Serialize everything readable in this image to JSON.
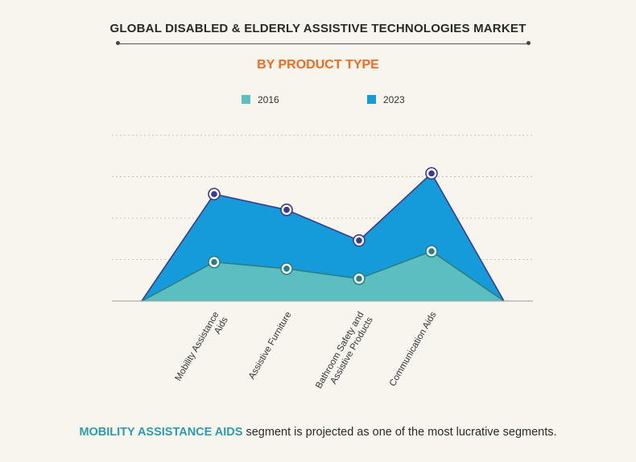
{
  "title": "GLOBAL DISABLED & ELDERLY ASSISTIVE TECHNOLOGIES MARKET",
  "subtitle": "BY PRODUCT TYPE",
  "colors": {
    "s2016": "#5bbfc1",
    "s2023": "#169bda",
    "title": "#2a2a2a",
    "subtitle": "#ef6b1f",
    "highlight": "#2b9cad"
  },
  "chart_data": {
    "type": "area",
    "categories": [
      "Mobility Assistance Aids",
      "Assistive Furniture",
      "Bathroom Safety and Assistive Products",
      "Communication Aids"
    ],
    "series": [
      {
        "name": "2016",
        "values": [
          47,
          39,
          27,
          60
        ]
      },
      {
        "name": "2023",
        "values": [
          129,
          110,
          73,
          154
        ]
      }
    ],
    "ylim": [
      0,
      200
    ],
    "grid": true,
    "legend": "top-center"
  },
  "footer": {
    "highlight": "MOBILITY ASSISTANCE AIDS",
    "rest": " segment is projected as one of the most lucrative segments."
  }
}
